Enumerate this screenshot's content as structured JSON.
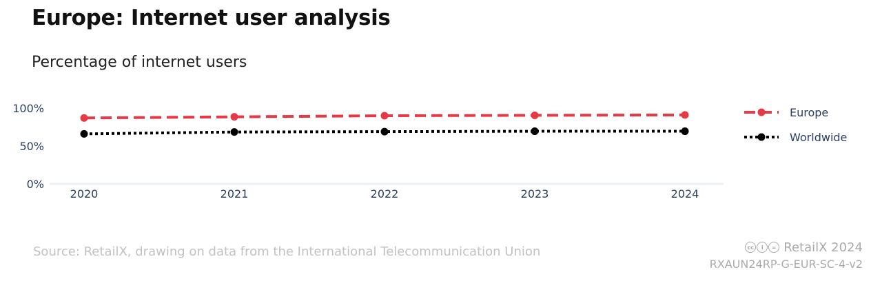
{
  "header": {
    "title": "Europe: Internet user analysis",
    "subtitle": "Percentage of internet users"
  },
  "footer": {
    "source": "Source: RetailX, drawing on data from the International Telecommunication Union",
    "brand": "RetailX 2024",
    "report_id": "RXAUN24RP-G-EUR-SC-4-v2",
    "license_icons": [
      "creative-commons-icon",
      "attribution-icon",
      "no-derivatives-icon"
    ]
  },
  "chart_data": {
    "type": "line",
    "title": "Europe: Internet user analysis",
    "subtitle": "Percentage of internet users",
    "xlabel": "",
    "ylabel": "",
    "categories": [
      "2020",
      "2021",
      "2022",
      "2023",
      "2024"
    ],
    "ylim": [
      0,
      100
    ],
    "yticks": [
      0,
      50,
      100
    ],
    "ytick_labels": [
      "0%",
      "50%",
      "100%"
    ],
    "grid": false,
    "legend_position": "right",
    "series": [
      {
        "name": "Europe",
        "values": [
          87,
          88.5,
          90,
          90.5,
          91
        ],
        "color": "#e63946",
        "line_style": "dashed"
      },
      {
        "name": "Worldwide",
        "values": [
          66,
          68.5,
          69,
          69.5,
          69.5
        ],
        "color": "#000000",
        "line_style": "dotted"
      }
    ]
  }
}
